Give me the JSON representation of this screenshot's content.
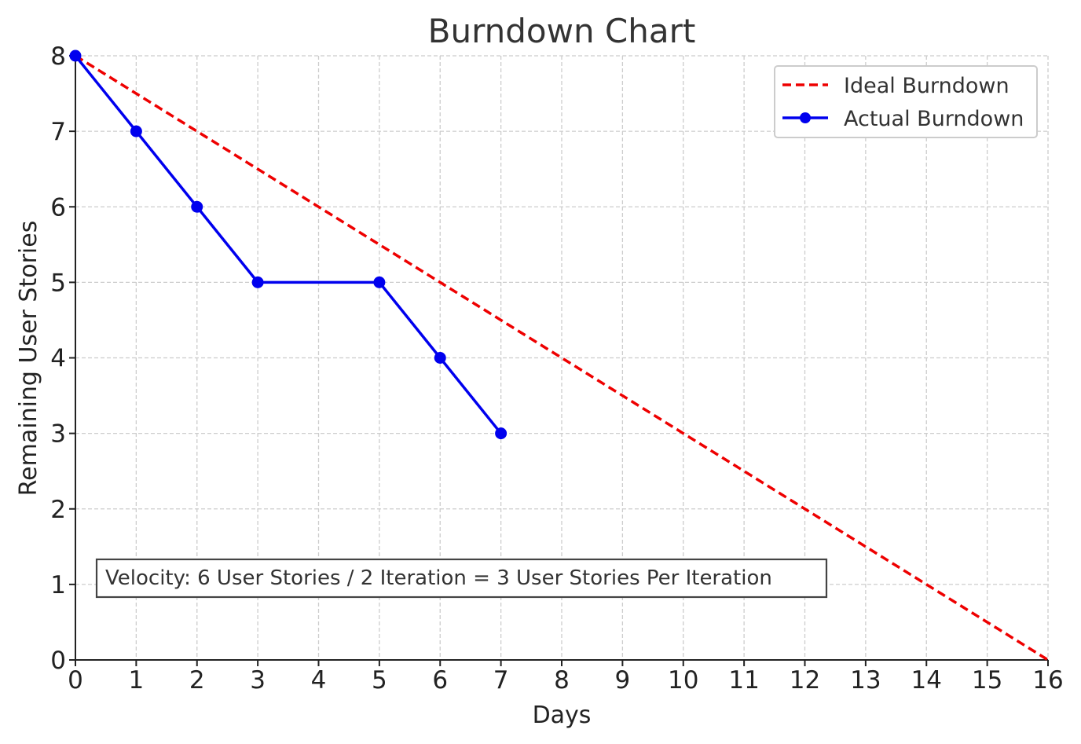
{
  "chart_data": {
    "type": "line",
    "title": "Burndown Chart",
    "xlabel": "Days",
    "ylabel": "Remaining User Stories",
    "xlim": [
      0,
      16
    ],
    "ylim": [
      0,
      8
    ],
    "xticks": [
      0,
      1,
      2,
      3,
      4,
      5,
      6,
      7,
      8,
      9,
      10,
      11,
      12,
      13,
      14,
      15,
      16
    ],
    "yticks": [
      0,
      1,
      2,
      3,
      4,
      5,
      6,
      7,
      8
    ],
    "grid": true,
    "legend_position": "top-right",
    "series": [
      {
        "name": "Ideal Burndown",
        "style": "dashed",
        "color": "#ee0000",
        "x": [
          0,
          16
        ],
        "y": [
          8,
          0
        ]
      },
      {
        "name": "Actual Burndown",
        "style": "solid-markers",
        "color": "#0000ee",
        "x": [
          0,
          1,
          2,
          3,
          5,
          6,
          7
        ],
        "y": [
          8,
          7,
          6,
          5,
          5,
          4,
          3
        ]
      }
    ],
    "annotation": "Velocity: 6 User Stories / 2 Iteration = 3 User Stories Per Iteration"
  }
}
